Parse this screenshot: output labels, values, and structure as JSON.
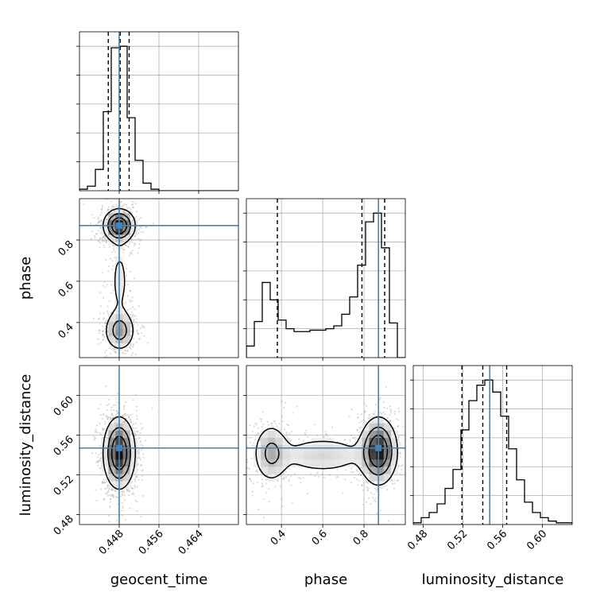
{
  "chart_data": {
    "type": "corner",
    "grid": true,
    "parameters": [
      {
        "name": "geocent_time",
        "axis_range": [
          0.44,
          0.472
        ],
        "ticks": [
          0.448,
          0.456,
          0.464
        ],
        "tick_labels": [
          "0.448",
          "0.456",
          "0.464"
        ],
        "truth": 0.448,
        "quantiles": [
          0.4458,
          0.4482,
          0.45
        ],
        "histogram": {
          "bin_edges": [
            0.44,
            0.4416,
            0.4432,
            0.4448,
            0.4464,
            0.448,
            0.4496,
            0.4512,
            0.4528,
            0.4544,
            0.456,
            0.4576,
            0.4592,
            0.4608,
            0.4624,
            0.464,
            0.4656,
            0.4672,
            0.4688,
            0.4704,
            0.472
          ],
          "counts": [
            1,
            3,
            14,
            52,
            94,
            95,
            48,
            20,
            5,
            1,
            0,
            0,
            0,
            0,
            0,
            0,
            0,
            0,
            0,
            0
          ]
        }
      },
      {
        "name": "phase",
        "axis_range": [
          0.23,
          1.0
        ],
        "ticks": [
          0.4,
          0.6,
          0.8
        ],
        "tick_labels": [
          "0.4",
          "0.6",
          "0.8"
        ],
        "truth": 0.87,
        "quantiles": [
          0.38,
          0.79,
          0.9
        ],
        "histogram": {
          "bin_edges": [
            0.23,
            0.2685,
            0.307,
            0.3455,
            0.384,
            0.4225,
            0.461,
            0.4995,
            0.538,
            0.5765,
            0.615,
            0.6535,
            0.692,
            0.7305,
            0.769,
            0.8075,
            0.846,
            0.8845,
            0.923,
            0.9615,
            1.0
          ],
          "counts": [
            8,
            25,
            52,
            40,
            26,
            20,
            18,
            18,
            19,
            19,
            20,
            22,
            30,
            42,
            64,
            94,
            100,
            76,
            24,
            0
          ]
        }
      },
      {
        "name": "luminosity_distance",
        "axis_range": [
          0.47,
          0.63
        ],
        "ticks": [
          0.48,
          0.52,
          0.56,
          0.6
        ],
        "tick_labels": [
          "0.48",
          "0.52",
          "0.56",
          "0.60"
        ],
        "truth": 0.547,
        "quantiles": [
          0.519,
          0.54,
          0.564
        ],
        "histogram": {
          "bin_edges": [
            0.47,
            0.478,
            0.486,
            0.494,
            0.502,
            0.51,
            0.518,
            0.526,
            0.534,
            0.542,
            0.55,
            0.558,
            0.566,
            0.574,
            0.582,
            0.59,
            0.598,
            0.606,
            0.614,
            0.622,
            0.63
          ],
          "counts": [
            1,
            4,
            7,
            12,
            21,
            32,
            55,
            72,
            81,
            84,
            77,
            63,
            44,
            26,
            13,
            7,
            4,
            2,
            1,
            1
          ]
        }
      }
    ],
    "hist2d": [
      {
        "x": "geocent_time",
        "y": "phase",
        "modes": [
          {
            "x": 0.448,
            "y": 0.87,
            "sx": 0.0016,
            "sy": 0.04,
            "weight": 0.6
          },
          {
            "x": 0.4481,
            "y": 0.36,
            "sx": 0.0016,
            "sy": 0.05,
            "weight": 0.3
          },
          {
            "x": 0.4481,
            "y": 0.6,
            "sx": 0.0014,
            "sy": 0.14,
            "weight": 0.1
          }
        ]
      },
      {
        "x": "geocent_time",
        "y": "luminosity_distance",
        "modes": [
          {
            "x": 0.448,
            "y": 0.542,
            "sx": 0.0016,
            "sy": 0.018,
            "weight": 1.0
          }
        ]
      },
      {
        "x": "phase",
        "y": "luminosity_distance",
        "modes": [
          {
            "x": 0.87,
            "y": 0.544,
            "sx": 0.045,
            "sy": 0.017,
            "weight": 0.6
          },
          {
            "x": 0.35,
            "y": 0.542,
            "sx": 0.045,
            "sy": 0.016,
            "weight": 0.25
          },
          {
            "x": 0.6,
            "y": 0.54,
            "sx": 0.14,
            "sy": 0.012,
            "weight": 0.15
          }
        ]
      }
    ],
    "colors": {
      "truth_line": "#4682b4",
      "quantile_line": "#000000",
      "histogram_line": "#000000",
      "contour": "#000000",
      "grid": "#b0b0b0",
      "density_dark": "#000000",
      "scatter": "#999999"
    }
  }
}
